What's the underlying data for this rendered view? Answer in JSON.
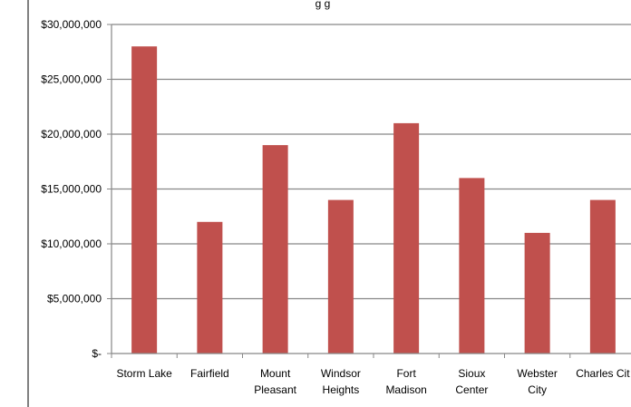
{
  "chart_data": {
    "type": "bar",
    "title": "g g",
    "xlabel": "",
    "ylabel": "",
    "categories": [
      [
        "Storm Lake"
      ],
      [
        "Fairfield"
      ],
      [
        "Mount",
        "Pleasant"
      ],
      [
        "Windsor",
        "Heights"
      ],
      [
        "Fort",
        "Madison"
      ],
      [
        "Sioux",
        "Center"
      ],
      [
        "Webster",
        "City"
      ],
      [
        "Charles Cit"
      ]
    ],
    "values": [
      28000000,
      12000000,
      19000000,
      14000000,
      21000000,
      16000000,
      11000000,
      14000000
    ],
    "ylim": [
      0,
      30000000
    ],
    "ytick_values": [
      0,
      5000000,
      10000000,
      15000000,
      20000000,
      25000000,
      30000000
    ],
    "ytick_labels": [
      "$-",
      "$5,000,000",
      "$10,000,000",
      "$15,000,000",
      "$20,000,000",
      "$25,000,000",
      "$30,000,000"
    ],
    "grid": true,
    "legend": "none",
    "colors": {
      "bar": "#C0504D",
      "grid": "#878787",
      "axis": "#878787",
      "border": "#000000"
    }
  }
}
